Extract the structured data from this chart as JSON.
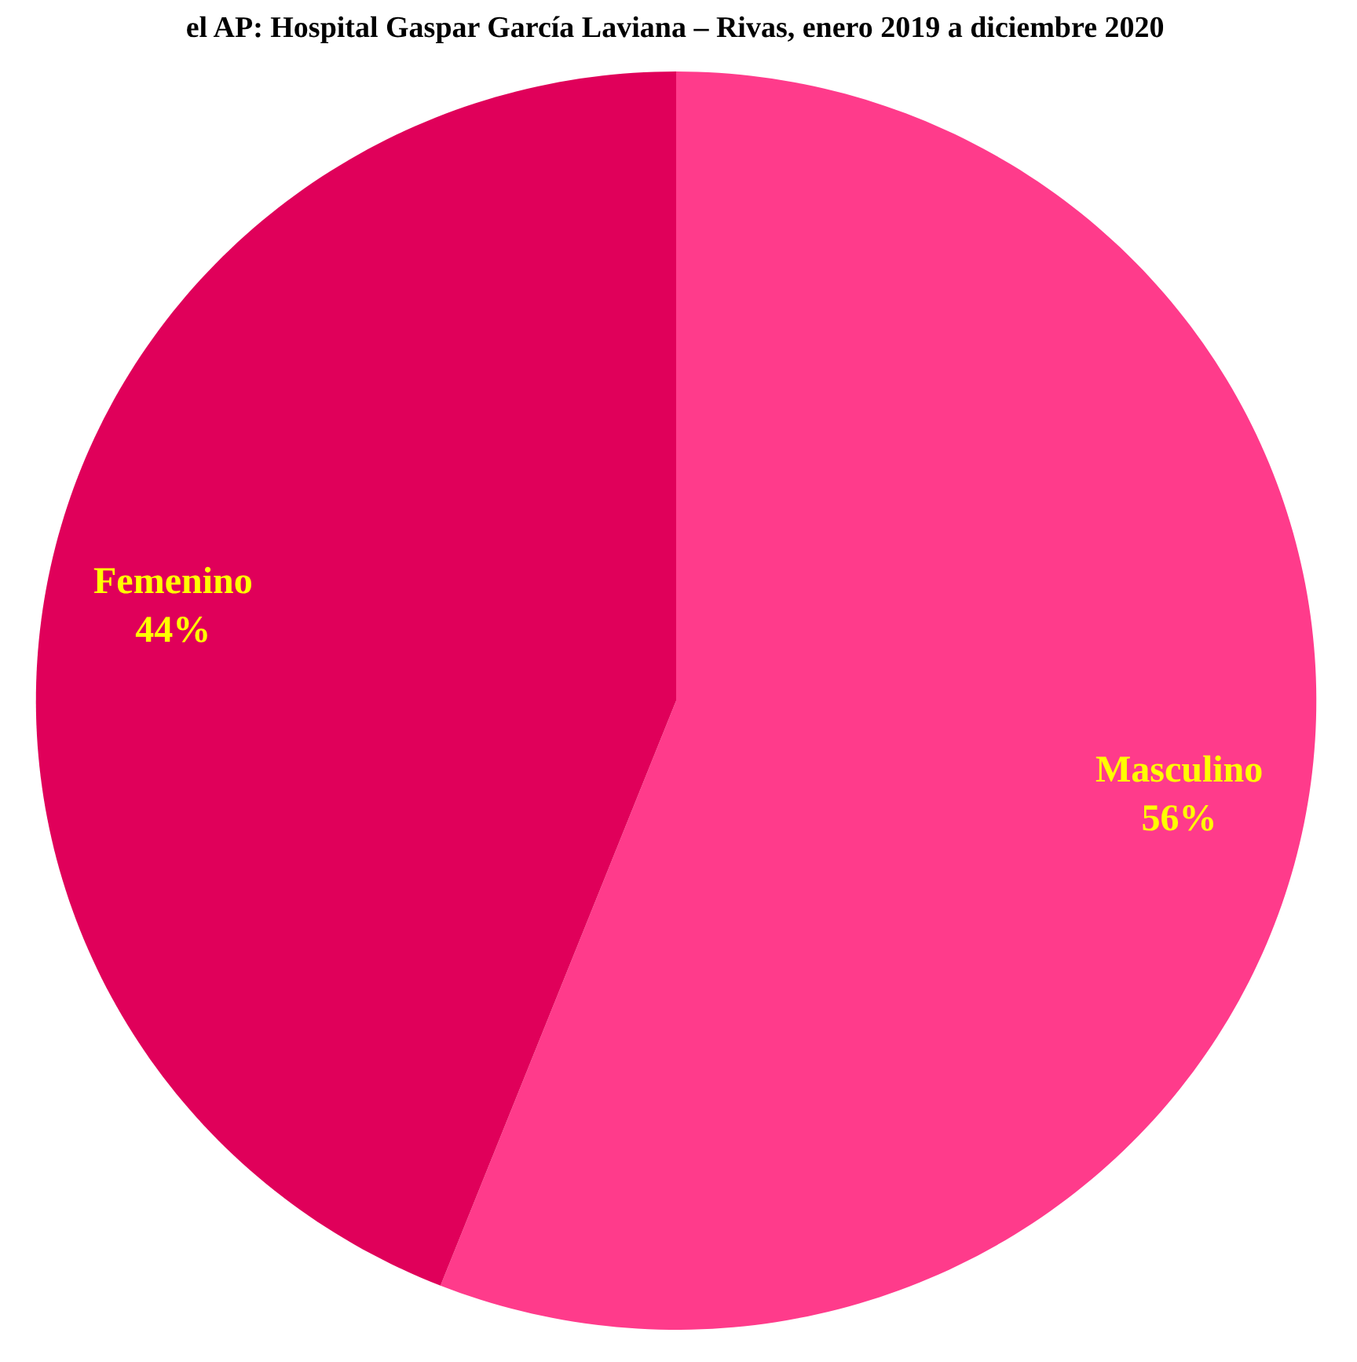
{
  "chart_data": {
    "type": "pie",
    "title": "el AP: Hospital Gaspar García Laviana – Rivas, enero 2019 a diciembre 2020",
    "categories": [
      "Masculino",
      "Femenino"
    ],
    "values": [
      56,
      44
    ],
    "colors": [
      "#ff3b8b",
      "#e0005a"
    ],
    "value_labels": [
      "56%",
      "44%"
    ]
  }
}
